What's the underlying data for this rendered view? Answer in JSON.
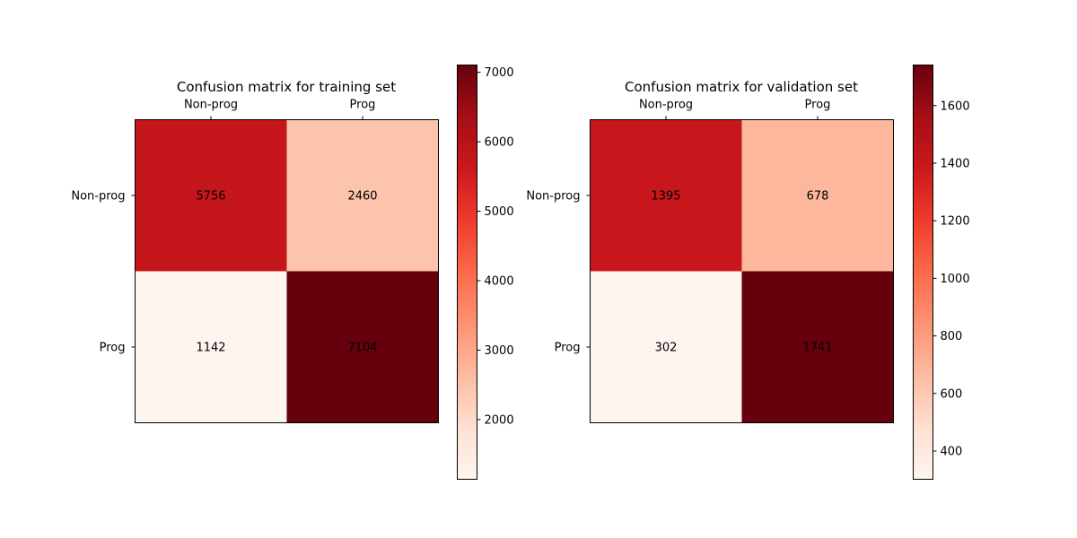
{
  "chart_data": [
    {
      "type": "heatmap",
      "title": "Confusion matrix for training set",
      "x_categories": [
        "Non-prog",
        "Prog"
      ],
      "y_categories": [
        "Non-prog",
        "Prog"
      ],
      "values": [
        [
          5756,
          2460
        ],
        [
          1142,
          7104
        ]
      ],
      "colormap": "Reds",
      "colorbar": {
        "range": [
          1142,
          7104
        ],
        "ticks": [
          2000,
          3000,
          4000,
          5000,
          6000,
          7000
        ],
        "tick_labels": [
          "2000",
          "3000",
          "4000",
          "5000",
          "6000",
          "7000"
        ]
      },
      "x_tick_position": "top"
    },
    {
      "type": "heatmap",
      "title": "Confusion matrix for validation set",
      "x_categories": [
        "Non-prog",
        "Prog"
      ],
      "y_categories": [
        "Non-prog",
        "Prog"
      ],
      "values": [
        [
          1395,
          678
        ],
        [
          302,
          1741
        ]
      ],
      "colormap": "Reds",
      "colorbar": {
        "range": [
          302,
          1741
        ],
        "ticks": [
          400,
          600,
          800,
          1000,
          1200,
          1400,
          1600
        ],
        "tick_labels": [
          "400",
          "600",
          "800",
          "1000",
          "1200",
          "1400",
          "1600"
        ]
      },
      "x_tick_position": "top"
    }
  ]
}
